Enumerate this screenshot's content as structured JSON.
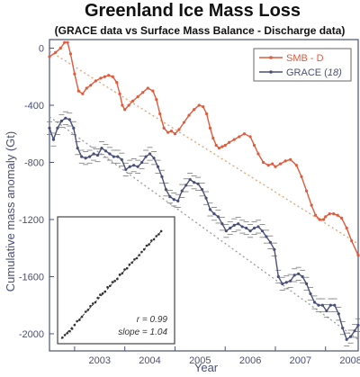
{
  "chart_data": {
    "type": "line",
    "title": "Greenland Ice Mass Loss",
    "subtitle": "(GRACE data vs Surface Mass Balance - Discharge data)",
    "xlabel": "Year",
    "ylabel": "Cumulative mass anomaly (Gt)",
    "xlim": [
      2002.5,
      2008.65
    ],
    "ylim": [
      -2120,
      60
    ],
    "x_ticks": [
      2003,
      2004,
      2005,
      2006,
      2007,
      2008
    ],
    "y_ticks": [
      0,
      -400,
      -800,
      -1200,
      -1600,
      -2000
    ],
    "grid": false,
    "legend_position": "top-right",
    "colors": {
      "smb": "#e05a3c",
      "grace": "#4a4f78",
      "trend_smb": "#e6a070",
      "trend_grace": "#9a9aa2",
      "axis": "#4a4f78"
    },
    "legend": [
      {
        "series": "smb",
        "label": "SMB - D",
        "suffix": ""
      },
      {
        "series": "grace",
        "label": "GRACE (",
        "suffix": "18)"
      }
    ],
    "series": [
      {
        "key": "smb",
        "label": "SMB - D",
        "x": [
          2002.5,
          2002.62,
          2002.72,
          2002.8,
          2002.86,
          2002.92,
          2003.0,
          2003.08,
          2003.16,
          2003.24,
          2003.32,
          2003.42,
          2003.52,
          2003.6,
          2003.68,
          2003.76,
          2003.84,
          2003.9,
          2003.95,
          2004.0,
          2004.08,
          2004.16,
          2004.26,
          2004.36,
          2004.46,
          2004.56,
          2004.63,
          2004.7,
          2004.78,
          2004.86,
          2004.93,
          2005.0,
          2005.08,
          2005.18,
          2005.28,
          2005.38,
          2005.48,
          2005.56,
          2005.63,
          2005.7,
          2005.76,
          2005.82,
          2005.88,
          2005.94,
          2006.0,
          2006.08,
          2006.18,
          2006.28,
          2006.38,
          2006.5,
          2006.58,
          2006.66,
          2006.76,
          2006.86,
          2006.94,
          2007.0,
          2007.1,
          2007.2,
          2007.3,
          2007.42,
          2007.52,
          2007.62,
          2007.72,
          2007.8,
          2007.88,
          2007.96,
          2008.0,
          2008.08,
          2008.16,
          2008.24,
          2008.32,
          2008.42,
          2008.52,
          2008.65
        ],
        "values": [
          -60,
          -30,
          0,
          40,
          40,
          -40,
          -180,
          -300,
          -320,
          -280,
          -260,
          -230,
          -210,
          -200,
          -190,
          -200,
          -240,
          -320,
          -400,
          -430,
          -400,
          -370,
          -340,
          -310,
          -280,
          -300,
          -360,
          -460,
          -560,
          -590,
          -580,
          -600,
          -570,
          -520,
          -470,
          -430,
          -400,
          -410,
          -460,
          -560,
          -630,
          -680,
          -700,
          -690,
          -680,
          -660,
          -640,
          -620,
          -600,
          -620,
          -680,
          -740,
          -800,
          -820,
          -810,
          -830,
          -810,
          -790,
          -780,
          -820,
          -900,
          -1000,
          -1100,
          -1170,
          -1200,
          -1200,
          -1180,
          -1160,
          -1160,
          -1170,
          -1190,
          -1260,
          -1350,
          -1450
        ]
      },
      {
        "key": "grace",
        "label": "GRACE (18)",
        "x": [
          2002.5,
          2002.58,
          2002.66,
          2002.74,
          2002.82,
          2002.9,
          2002.98,
          2003.06,
          2003.14,
          2003.22,
          2003.3,
          2003.38,
          2003.46,
          2003.54,
          2003.62,
          2003.7,
          2003.78,
          2003.86,
          2003.94,
          2004.02,
          2004.1,
          2004.18,
          2004.26,
          2004.34,
          2004.42,
          2004.5,
          2004.58,
          2004.66,
          2004.74,
          2004.82,
          2004.9,
          2004.98,
          2005.06,
          2005.14,
          2005.22,
          2005.3,
          2005.38,
          2005.46,
          2005.54,
          2005.62,
          2005.7,
          2005.78,
          2005.86,
          2005.94,
          2006.02,
          2006.1,
          2006.18,
          2006.26,
          2006.34,
          2006.42,
          2006.5,
          2006.58,
          2006.66,
          2006.74,
          2006.82,
          2006.9,
          2006.98,
          2007.06,
          2007.14,
          2007.22,
          2007.3,
          2007.38,
          2007.46,
          2007.54,
          2007.62,
          2007.7,
          2007.78,
          2007.86,
          2007.94,
          2008.02,
          2008.1,
          2008.18,
          2008.26,
          2008.34,
          2008.42,
          2008.5,
          2008.58,
          2008.65
        ],
        "values": [
          -560,
          -640,
          -560,
          -510,
          -490,
          -500,
          -560,
          -700,
          -760,
          -770,
          -760,
          -740,
          -750,
          -700,
          -720,
          -740,
          -760,
          -760,
          -780,
          -850,
          -830,
          -820,
          -830,
          -800,
          -760,
          -740,
          -770,
          -830,
          -900,
          -990,
          -1040,
          -1060,
          -1070,
          -1000,
          -960,
          -920,
          -940,
          -950,
          -990,
          -1050,
          -1130,
          -1160,
          -1180,
          -1230,
          -1280,
          -1260,
          -1240,
          -1230,
          -1250,
          -1260,
          -1280,
          -1260,
          -1250,
          -1280,
          -1320,
          -1360,
          -1410,
          -1600,
          -1650,
          -1640,
          -1630,
          -1590,
          -1580,
          -1600,
          -1650,
          -1720,
          -1780,
          -1800,
          -1800,
          -1840,
          -1800,
          -1800,
          -1860,
          -1960,
          -2040,
          -2020,
          -1980,
          -1940
        ]
      }
    ],
    "trendlines": [
      {
        "series": "smb",
        "x": [
          2002.5,
          2008.65
        ],
        "values": [
          -20,
          -1370
        ]
      },
      {
        "series": "grace",
        "x": [
          2002.5,
          2008.65
        ],
        "values": [
          -480,
          -2040
        ]
      }
    ],
    "inset": {
      "type": "scatter",
      "r_label": "r = 0.99",
      "slope_label": "slope = 1.04",
      "xlim": [
        -1700,
        100
      ],
      "ylim": [
        -1800,
        100
      ],
      "fit": {
        "x": [
          -1700,
          -50
        ],
        "values": [
          -1780,
          -60
        ]
      },
      "x": [
        -1680,
        -1640,
        -1600,
        -1560,
        -1520,
        -1480,
        -1440,
        -1400,
        -1360,
        -1300,
        -1260,
        -1220,
        -1180,
        -1140,
        -1100,
        -1060,
        -1020,
        -980,
        -940,
        -900,
        -860,
        -820,
        -780,
        -740,
        -700,
        -660,
        -620,
        -580,
        -540,
        -500,
        -460,
        -420,
        -380,
        -340,
        -300,
        -260,
        -220,
        -180,
        -140,
        -100,
        -60
      ],
      "values": [
        -1760,
        -1720,
        -1690,
        -1660,
        -1620,
        -1560,
        -1500,
        -1480,
        -1430,
        -1350,
        -1320,
        -1260,
        -1220,
        -1200,
        -1130,
        -1080,
        -1060,
        -1030,
        -960,
        -940,
        -880,
        -860,
        -830,
        -760,
        -740,
        -680,
        -660,
        -600,
        -570,
        -520,
        -500,
        -450,
        -400,
        -360,
        -300,
        -280,
        -220,
        -200,
        -150,
        -120,
        -70
      ]
    }
  }
}
